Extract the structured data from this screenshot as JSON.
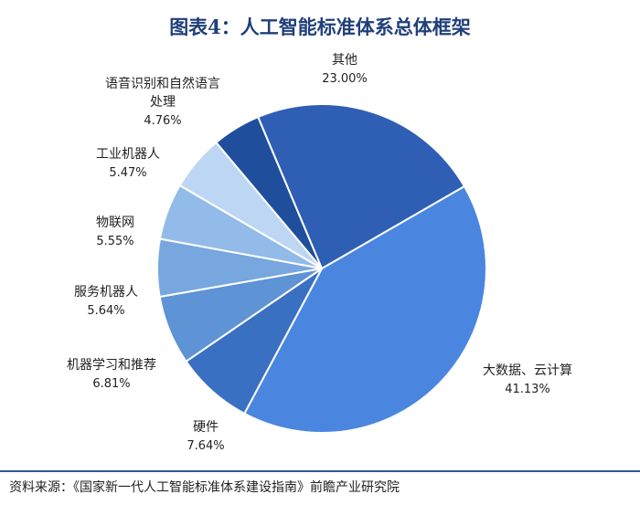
{
  "title": "图表4：人工智能标准体系总体框架",
  "source": "资料来源：《国家新一代人工智能标准体系建设指南》前瞻产业研究院",
  "chart_data": {
    "type": "pie",
    "title": "图表4：人工智能标准体系总体框架",
    "slices": [
      {
        "name": "大数据、云计算",
        "value": 41.13,
        "label": "41.13%",
        "color": "#4a86e0"
      },
      {
        "name": "硬件",
        "value": 7.64,
        "label": "7.64%",
        "color": "#3a70c2"
      },
      {
        "name": "机器学习和推荐",
        "value": 6.81,
        "label": "6.81%",
        "color": "#5e93d6"
      },
      {
        "name": "服务机器人",
        "value": 5.64,
        "label": "5.64%",
        "color": "#78a6df"
      },
      {
        "name": "物联网",
        "value": 5.55,
        "label": "5.55%",
        "color": "#93bbe9"
      },
      {
        "name": "工业机器人",
        "value": 5.47,
        "label": "5.47%",
        "color": "#bcd6f3"
      },
      {
        "name": "语音识别和自然语言处理",
        "value": 4.76,
        "label": "4.76%",
        "color": "#1f4f9c"
      },
      {
        "name": "其他",
        "value": 23.0,
        "label": "23.00%",
        "color": "#2e5fb4"
      }
    ]
  }
}
